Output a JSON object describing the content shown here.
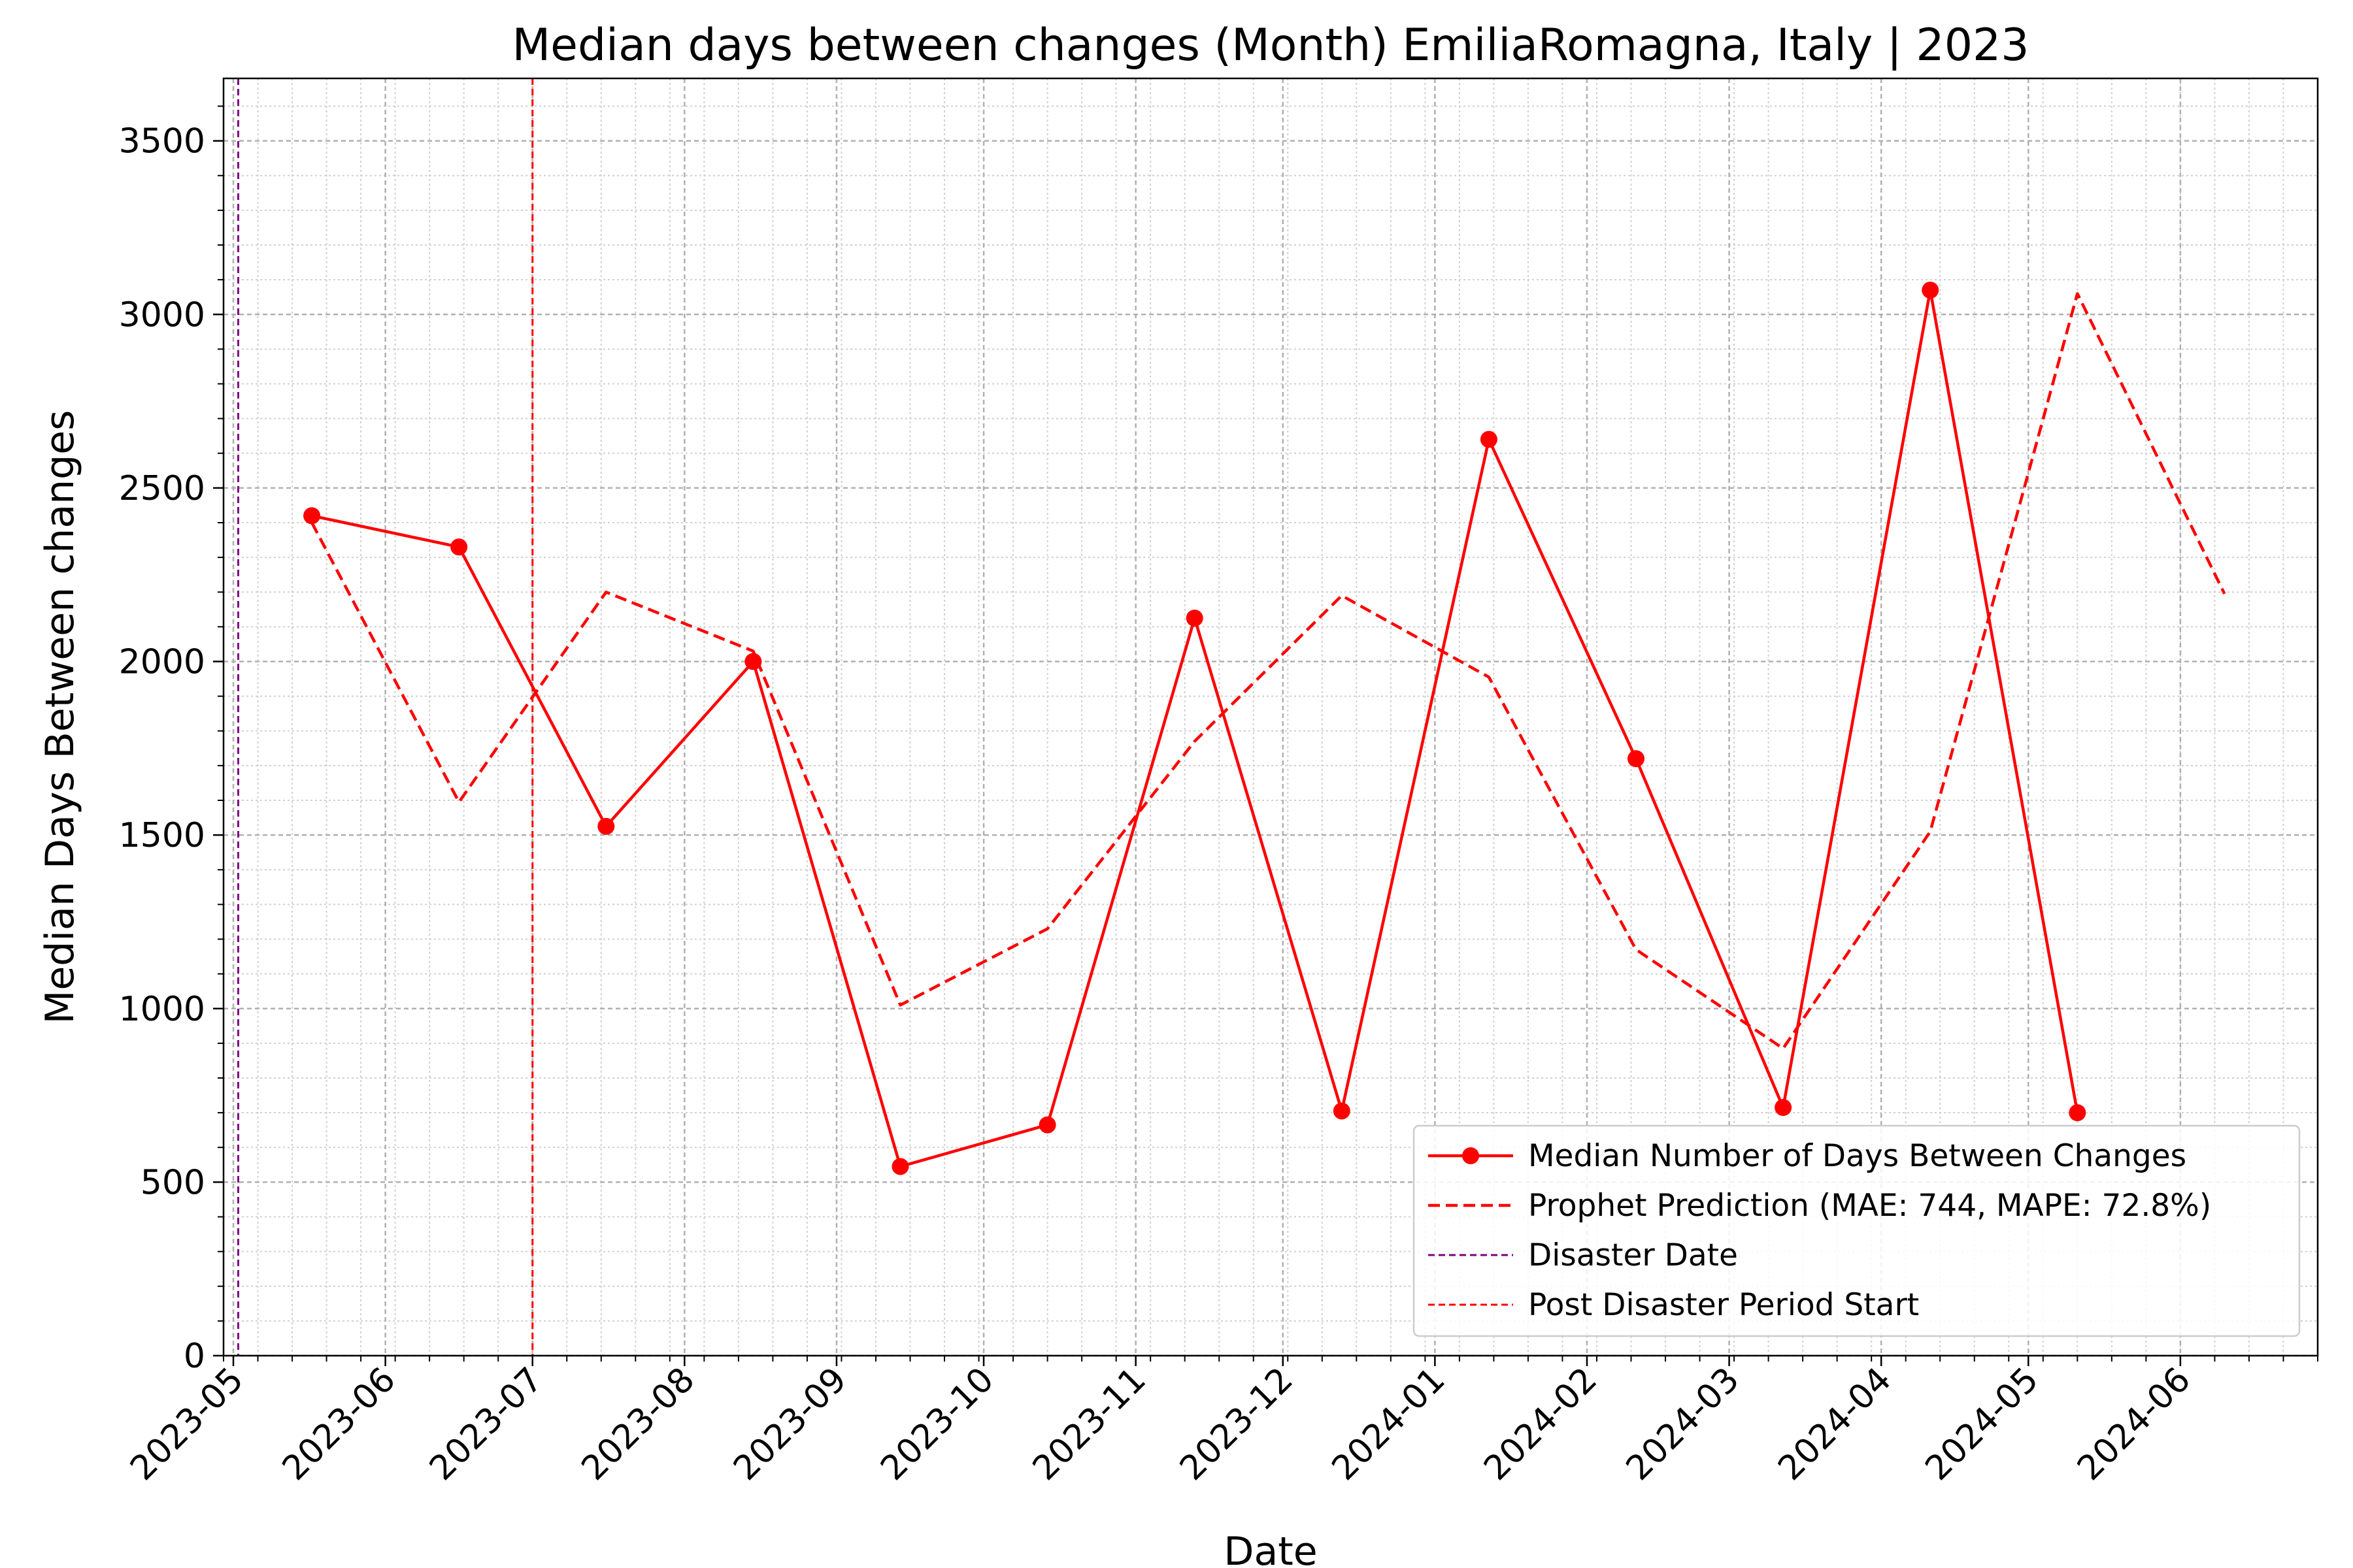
{
  "chart_data": {
    "type": "line",
    "title": "Median days between changes (Month) EmiliaRomagna, Italy | 2023",
    "xlabel": "Date",
    "ylabel": "Median Days Between changes",
    "xlim": [
      "2023-04-29",
      "2024-06-29"
    ],
    "ylim": [
      0,
      3680
    ],
    "x_ticks": [
      "2023-05",
      "2023-06",
      "2023-07",
      "2023-08",
      "2023-09",
      "2023-10",
      "2023-11",
      "2023-12",
      "2024-01",
      "2024-02",
      "2024-03",
      "2024-04",
      "2024-05",
      "2024-06"
    ],
    "y_ticks": [
      0,
      500,
      1000,
      1500,
      2000,
      2500,
      3000,
      3500
    ],
    "grid": true,
    "minor_grid": true,
    "legend_position": "lower right",
    "series": [
      {
        "name": "Median Number of Days Between Changes",
        "style": "solid-marker",
        "color": "#ff0000",
        "x": [
          "2023-05-17",
          "2023-06-16",
          "2023-07-16",
          "2023-08-15",
          "2023-09-14",
          "2023-10-14",
          "2023-11-13",
          "2023-12-13",
          "2024-01-12",
          "2024-02-11",
          "2024-03-12",
          "2024-04-11",
          "2024-05-11"
        ],
        "values": [
          2420,
          2330,
          1525,
          2000,
          545,
          665,
          2125,
          705,
          2640,
          1720,
          715,
          3070,
          700
        ]
      },
      {
        "name": "Prophet Prediction (MAE: 744, MAPE: 72.8%)",
        "style": "dashed",
        "color": "#ff0000",
        "x": [
          "2023-05-17",
          "2023-06-16",
          "2023-07-16",
          "2023-08-15",
          "2023-09-14",
          "2023-10-14",
          "2023-11-13",
          "2023-12-13",
          "2024-01-12",
          "2024-02-11",
          "2024-03-12",
          "2024-04-11",
          "2024-05-11",
          "2024-06-10"
        ],
        "values": [
          2400,
          1595,
          2200,
          2030,
          1010,
          1230,
          1770,
          2190,
          1955,
          1170,
          885,
          1510,
          3060,
          2195
        ]
      }
    ],
    "vlines": [
      {
        "name": "Disaster Date",
        "x": "2023-05-02",
        "color": "#800080",
        "style": "dashed"
      },
      {
        "name": "Post Disaster Period Start",
        "x": "2023-07-01",
        "color": "#ff0000",
        "style": "dashed"
      }
    ]
  }
}
